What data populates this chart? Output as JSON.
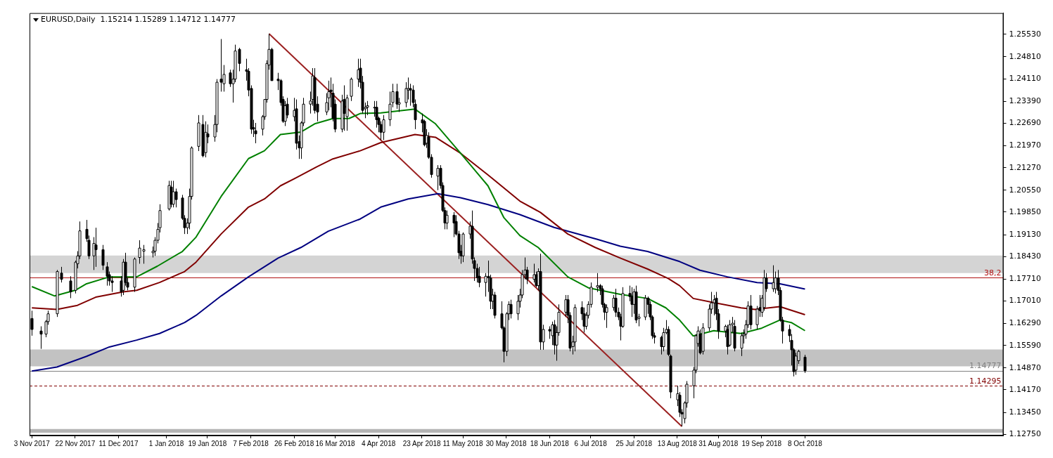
{
  "chart_data": {
    "type": "candlestick",
    "title": "EURUSD,Daily  1.15214 1.15289 1.14712 1.14777",
    "annotations": [
      {
        "text": "38,2",
        "y": 1.1775
      }
    ],
    "xlim": [
      "2017-11-02",
      "2019-01-03"
    ],
    "ylim": [
      1.1271,
      1.2621
    ],
    "xticks": [
      {
        "value": "2017-11-03",
        "label": "3 Nov 2017"
      },
      {
        "value": "2017-11-22",
        "label": "22 Nov 2017"
      },
      {
        "value": "2017-12-11",
        "label": "11 Dec 2017"
      },
      {
        "value": "2018-01-01",
        "label": "1 Jan 2018"
      },
      {
        "value": "2018-01-19",
        "label": "19 Jan 2018"
      },
      {
        "value": "2018-02-07",
        "label": "7 Feb 2018"
      },
      {
        "value": "2018-02-26",
        "label": "26 Feb 2018"
      },
      {
        "value": "2018-03-16",
        "label": "16 Mar 2018"
      },
      {
        "value": "2018-04-04",
        "label": "4 Apr 2018"
      },
      {
        "value": "2018-04-23",
        "label": "23 Apr 2018"
      },
      {
        "value": "2018-05-11",
        "label": "11 May 2018"
      },
      {
        "value": "2018-05-30",
        "label": "30 May 2018"
      },
      {
        "value": "2018-06-18",
        "label": "18 Jun 2018"
      },
      {
        "value": "2018-07-06",
        "label": "6 Jul 2018"
      },
      {
        "value": "2018-07-25",
        "label": "25 Jul 2018"
      },
      {
        "value": "2018-08-13",
        "label": "13 Aug 2018"
      },
      {
        "value": "2018-08-31",
        "label": "31 Aug 2018"
      },
      {
        "value": "2018-09-19",
        "label": "19 Sep 2018"
      },
      {
        "value": "2018-10-08",
        "label": "8 Oct 2018"
      }
    ],
    "yticks": [
      {
        "value": 1.1275,
        "label": "1.12750"
      },
      {
        "value": 1.1345,
        "label": "1.13450"
      },
      {
        "value": 1.1417,
        "label": "1.14170"
      },
      {
        "value": 1.1487,
        "label": "1.14870"
      },
      {
        "value": 1.1559,
        "label": "1.15590"
      },
      {
        "value": 1.1629,
        "label": "1.16290"
      },
      {
        "value": 1.1701,
        "label": "1.17010"
      },
      {
        "value": 1.1771,
        "label": "1.17710"
      },
      {
        "value": 1.1843,
        "label": "1.18430"
      },
      {
        "value": 1.1913,
        "label": "1.19130"
      },
      {
        "value": 1.1985,
        "label": "1.19850"
      },
      {
        "value": 1.2055,
        "label": "1.20550"
      },
      {
        "value": 1.2127,
        "label": "1.21270"
      },
      {
        "value": 1.2197,
        "label": "1.21970"
      },
      {
        "value": 1.2269,
        "label": "1.22690"
      },
      {
        "value": 1.2339,
        "label": "1.23390"
      },
      {
        "value": 1.2411,
        "label": "1.24110"
      },
      {
        "value": 1.2481,
        "label": "1.24810"
      },
      {
        "value": 1.2553,
        "label": "1.25530"
      }
    ],
    "bands": [
      {
        "axis": "y",
        "from": 1.179,
        "to": 1.1846,
        "color": "#d4d4d4"
      },
      {
        "axis": "y",
        "from": 1.1492,
        "to": 1.1546,
        "color": "#c2c2c2"
      },
      {
        "axis": "y",
        "from": 1.128,
        "to": 1.1292,
        "color": "#b4b4b4"
      }
    ],
    "ref_lines": [
      {
        "axis": "y",
        "value": 1.1775,
        "color": "#b01010",
        "line_style": "solid"
      },
      {
        "axis": "y",
        "value": 1.14777,
        "label": "1.14777",
        "color": "#808080",
        "line_style": "solid"
      },
      {
        "axis": "y",
        "value": 1.14295,
        "label": "1.14295",
        "color": "#800000",
        "line_style": "dashed"
      }
    ],
    "series": [
      {
        "type": "line",
        "color": "#008000",
        "x": [
          "2017-11-03",
          "2017-11-13",
          "2017-11-22",
          "2017-11-27",
          "2017-12-07",
          "2017-12-19",
          "2017-12-28",
          "2018-01-08",
          "2018-01-14",
          "2018-01-25",
          "2018-02-06",
          "2018-02-13",
          "2018-02-20",
          "2018-03-01",
          "2018-03-07",
          "2018-03-15",
          "2018-03-22",
          "2018-03-27",
          "2018-04-05",
          "2018-04-20",
          "2018-04-29",
          "2018-05-10",
          "2018-05-22",
          "2018-05-29",
          "2018-06-05",
          "2018-06-13",
          "2018-06-26",
          "2018-07-05",
          "2018-07-19",
          "2018-07-31",
          "2018-08-08",
          "2018-08-14",
          "2018-08-20",
          "2018-08-29",
          "2018-09-10",
          "2018-09-19",
          "2018-09-27",
          "2018-10-02",
          "2018-10-08"
        ],
        "values": [
          1.1747,
          1.1717,
          1.1735,
          1.1756,
          1.1778,
          1.1778,
          1.1812,
          1.1859,
          1.1905,
          1.2035,
          1.2156,
          1.2181,
          1.2233,
          1.2241,
          1.2267,
          1.2284,
          1.2284,
          1.23,
          1.2302,
          1.2314,
          1.2267,
          1.2173,
          1.2069,
          1.1967,
          1.191,
          1.1872,
          1.1778,
          1.1743,
          1.1722,
          1.1709,
          1.1679,
          1.164,
          1.1589,
          1.1606,
          1.1597,
          1.1614,
          1.164,
          1.1632,
          1.1606
        ]
      },
      {
        "type": "line",
        "color": "#800000",
        "x": [
          "2017-11-03",
          "2017-11-14",
          "2017-11-23",
          "2017-12-01",
          "2017-12-13",
          "2017-12-19",
          "2017-12-29",
          "2018-01-09",
          "2018-01-14",
          "2018-01-25",
          "2018-02-06",
          "2018-02-13",
          "2018-02-20",
          "2018-02-27",
          "2018-03-08",
          "2018-03-15",
          "2018-03-27",
          "2018-04-05",
          "2018-04-20",
          "2018-04-29",
          "2018-05-10",
          "2018-05-22",
          "2018-06-05",
          "2018-06-14",
          "2018-06-26",
          "2018-07-08",
          "2018-07-19",
          "2018-07-31",
          "2018-08-09",
          "2018-08-14",
          "2018-08-20",
          "2018-08-29",
          "2018-09-10",
          "2018-09-16",
          "2018-09-27",
          "2018-10-08"
        ],
        "values": [
          1.1679,
          1.1674,
          1.1687,
          1.1713,
          1.173,
          1.1735,
          1.176,
          1.1795,
          1.1825,
          1.1915,
          1.2001,
          1.2027,
          1.2069,
          1.2095,
          1.213,
          1.2155,
          1.2181,
          1.2207,
          1.2233,
          1.2224,
          1.2173,
          1.2104,
          1.202,
          1.1984,
          1.1915,
          1.1872,
          1.1838,
          1.1803,
          1.1773,
          1.175,
          1.1709,
          1.1696,
          1.1679,
          1.1674,
          1.1683,
          1.1657
        ]
      },
      {
        "type": "line",
        "color": "#000080",
        "x": [
          "2017-11-03",
          "2017-11-14",
          "2017-11-27",
          "2017-12-07",
          "2017-12-19",
          "2017-12-29",
          "2018-01-09",
          "2018-01-14",
          "2018-01-25",
          "2018-02-06",
          "2018-02-19",
          "2018-03-01",
          "2018-03-13",
          "2018-03-27",
          "2018-04-05",
          "2018-04-17",
          "2018-04-30",
          "2018-05-10",
          "2018-05-22",
          "2018-06-05",
          "2018-06-20",
          "2018-07-09",
          "2018-07-19",
          "2018-07-31",
          "2018-08-14",
          "2018-08-23",
          "2018-09-04",
          "2018-09-17",
          "2018-09-27",
          "2018-10-08"
        ],
        "values": [
          1.1477,
          1.149,
          1.1524,
          1.1554,
          1.1576,
          1.1597,
          1.1632,
          1.1655,
          1.1717,
          1.1778,
          1.1838,
          1.1872,
          1.1924,
          1.1963,
          1.2001,
          1.2027,
          1.2044,
          1.2031,
          1.2009,
          1.1977,
          1.1936,
          1.1898,
          1.1876,
          1.1859,
          1.1827,
          1.1799,
          1.1778,
          1.176,
          1.1756,
          1.1739
        ]
      },
      {
        "type": "line",
        "color": "#9b2020",
        "x": [
          "2018-02-15",
          "2018-08-15"
        ],
        "values": [
          1.2555,
          1.13
        ]
      }
    ],
    "x": [
      "2017-11-03",
      "2017-11-07",
      "2017-11-09",
      "2017-11-10",
      "2017-11-14",
      "2017-11-16",
      "2017-11-20",
      "2017-11-22",
      "2017-11-23",
      "2017-11-24",
      "2017-11-27",
      "2017-11-28",
      "2017-11-30",
      "2017-12-01",
      "2017-12-04",
      "2017-12-06",
      "2017-12-07",
      "2017-12-08",
      "2017-12-12",
      "2017-12-13",
      "2017-12-14",
      "2017-12-15",
      "2017-12-18",
      "2017-12-20",
      "2017-12-22",
      "2017-12-26",
      "2017-12-27",
      "2017-12-28",
      "2017-12-29",
      "2018-01-02",
      "2018-01-03",
      "2018-01-04",
      "2018-01-05",
      "2018-01-08",
      "2018-01-09",
      "2018-01-10",
      "2018-01-11",
      "2018-01-12",
      "2018-01-15",
      "2018-01-17",
      "2018-01-18",
      "2018-01-19",
      "2018-01-22",
      "2018-01-23",
      "2018-01-25",
      "2018-01-26",
      "2018-01-29",
      "2018-01-30",
      "2018-01-31",
      "2018-02-02",
      "2018-02-05",
      "2018-02-06",
      "2018-02-07",
      "2018-02-08",
      "2018-02-09",
      "2018-02-12",
      "2018-02-13",
      "2018-02-14",
      "2018-02-15",
      "2018-02-16",
      "2018-02-19",
      "2018-02-20",
      "2018-02-21",
      "2018-02-22",
      "2018-02-23",
      "2018-02-26",
      "2018-02-27",
      "2018-02-28",
      "2018-03-01",
      "2018-03-02",
      "2018-03-05",
      "2018-03-06",
      "2018-03-07",
      "2018-03-08",
      "2018-03-12",
      "2018-03-13",
      "2018-03-14",
      "2018-03-15",
      "2018-03-16",
      "2018-03-19",
      "2018-03-20",
      "2018-03-21",
      "2018-03-23",
      "2018-03-26",
      "2018-03-27",
      "2018-03-28",
      "2018-03-29",
      "2018-03-30",
      "2018-04-02",
      "2018-04-03",
      "2018-04-04",
      "2018-04-05",
      "2018-04-06",
      "2018-04-09",
      "2018-04-10",
      "2018-04-12",
      "2018-04-13",
      "2018-04-16",
      "2018-04-17",
      "2018-04-18",
      "2018-04-19",
      "2018-04-20",
      "2018-04-23",
      "2018-04-24",
      "2018-04-25",
      "2018-04-26",
      "2018-04-27",
      "2018-04-30",
      "2018-05-01",
      "2018-05-02",
      "2018-05-03",
      "2018-05-04",
      "2018-05-07",
      "2018-05-08",
      "2018-05-09",
      "2018-05-10",
      "2018-05-11",
      "2018-05-14",
      "2018-05-15",
      "2018-05-16",
      "2018-05-17",
      "2018-05-18",
      "2018-05-21",
      "2018-05-22",
      "2018-05-23",
      "2018-05-24",
      "2018-05-25",
      "2018-05-28",
      "2018-05-29",
      "2018-05-30",
      "2018-05-31",
      "2018-06-01",
      "2018-06-04",
      "2018-06-05",
      "2018-06-06",
      "2018-06-07",
      "2018-06-08",
      "2018-06-11",
      "2018-06-12",
      "2018-06-13",
      "2018-06-14",
      "2018-06-15",
      "2018-06-18",
      "2018-06-19",
      "2018-06-20",
      "2018-06-21",
      "2018-06-22",
      "2018-06-25",
      "2018-06-26",
      "2018-06-27",
      "2018-06-28",
      "2018-06-29",
      "2018-07-02",
      "2018-07-03",
      "2018-07-04",
      "2018-07-05",
      "2018-07-06",
      "2018-07-09",
      "2018-07-10",
      "2018-07-11",
      "2018-07-12",
      "2018-07-13",
      "2018-07-16",
      "2018-07-17",
      "2018-07-18",
      "2018-07-19",
      "2018-07-20",
      "2018-07-23",
      "2018-07-24",
      "2018-07-25",
      "2018-07-26",
      "2018-07-27",
      "2018-07-30",
      "2018-07-31",
      "2018-08-01",
      "2018-08-02",
      "2018-08-03",
      "2018-08-06",
      "2018-08-07",
      "2018-08-08",
      "2018-08-09",
      "2018-08-10",
      "2018-08-13",
      "2018-08-14",
      "2018-08-15",
      "2018-08-16",
      "2018-08-17",
      "2018-08-20",
      "2018-08-21",
      "2018-08-22",
      "2018-08-23",
      "2018-08-24",
      "2018-08-27",
      "2018-08-28",
      "2018-08-29",
      "2018-08-30",
      "2018-08-31",
      "2018-09-03",
      "2018-09-04",
      "2018-09-05",
      "2018-09-06",
      "2018-09-07",
      "2018-09-10",
      "2018-09-11",
      "2018-09-12",
      "2018-09-13",
      "2018-09-14",
      "2018-09-17",
      "2018-09-18",
      "2018-09-19",
      "2018-09-20",
      "2018-09-21",
      "2018-09-24",
      "2018-09-25",
      "2018-09-26",
      "2018-09-27",
      "2018-09-28",
      "2018-10-01",
      "2018-10-02",
      "2018-10-03",
      "2018-10-04",
      "2018-10-05",
      "2018-10-08"
    ],
    "ohlc": [
      [
        1.1645,
        1.167,
        1.159,
        1.161
      ],
      [
        1.1605,
        1.162,
        1.1548,
        1.1595
      ],
      [
        1.1595,
        1.164,
        1.1585,
        1.1635
      ],
      [
        1.1635,
        1.167,
        1.1625,
        1.166
      ],
      [
        1.166,
        1.18,
        1.165,
        1.1795
      ],
      [
        1.179,
        1.181,
        1.176,
        1.177
      ],
      [
        1.1765,
        1.178,
        1.171,
        1.173
      ],
      [
        1.1735,
        1.183,
        1.1725,
        1.1825
      ],
      [
        1.182,
        1.186,
        1.1805,
        1.1845
      ],
      [
        1.1845,
        1.1955,
        1.1835,
        1.1925
      ],
      [
        1.193,
        1.196,
        1.189,
        1.19
      ],
      [
        1.1895,
        1.191,
        1.1835,
        1.1845
      ],
      [
        1.1845,
        1.1905,
        1.18,
        1.1885
      ],
      [
        1.188,
        1.1935,
        1.181,
        1.1865
      ],
      [
        1.1865,
        1.188,
        1.18,
        1.1815
      ],
      [
        1.181,
        1.1825,
        1.175,
        1.178
      ],
      [
        1.1785,
        1.1795,
        1.175,
        1.1765
      ],
      [
        1.1765,
        1.178,
        1.173,
        1.176
      ],
      [
        1.1765,
        1.178,
        1.1715,
        1.173
      ],
      [
        1.1735,
        1.1835,
        1.172,
        1.1825
      ],
      [
        1.1825,
        1.1855,
        1.175,
        1.176
      ],
      [
        1.176,
        1.1775,
        1.1735,
        1.1745
      ],
      [
        1.1745,
        1.184,
        1.173,
        1.1835
      ],
      [
        1.184,
        1.1895,
        1.182,
        1.187
      ],
      [
        1.186,
        1.188,
        1.182,
        1.1865
      ],
      [
        1.1855,
        1.1875,
        1.184,
        1.186
      ],
      [
        1.186,
        1.1905,
        1.1845,
        1.1895
      ],
      [
        1.1895,
        1.195,
        1.1885,
        1.193
      ],
      [
        1.1935,
        1.201,
        1.192,
        1.199
      ],
      [
        1.1995,
        1.2085,
        1.199,
        1.207
      ],
      [
        1.2065,
        1.2085,
        1.2,
        1.201
      ],
      [
        1.201,
        1.2085,
        1.2,
        1.205
      ],
      [
        1.205,
        1.206,
        1.2,
        1.2025
      ],
      [
        1.203,
        1.204,
        1.196,
        1.1965
      ],
      [
        1.1965,
        1.1975,
        1.1915,
        1.1935
      ],
      [
        1.1935,
        1.1965,
        1.1915,
        1.195
      ],
      [
        1.195,
        1.206,
        1.193,
        1.2035
      ],
      [
        1.2035,
        1.2195,
        1.2025,
        1.219
      ],
      [
        1.2195,
        1.2295,
        1.218,
        1.227
      ],
      [
        1.2265,
        1.2295,
        1.216,
        1.2165
      ],
      [
        1.2175,
        1.2275,
        1.216,
        1.224
      ],
      [
        1.2235,
        1.2265,
        1.2205,
        1.2225
      ],
      [
        1.2225,
        1.2295,
        1.221,
        1.2265
      ],
      [
        1.2265,
        1.241,
        1.224,
        1.24
      ],
      [
        1.241,
        1.2538,
        1.237,
        1.24
      ],
      [
        1.2395,
        1.2455,
        1.237,
        1.2425
      ],
      [
        1.243,
        1.244,
        1.2385,
        1.2395
      ],
      [
        1.2395,
        1.244,
        1.2335,
        1.241
      ],
      [
        1.241,
        1.252,
        1.24,
        1.25
      ],
      [
        1.2505,
        1.251,
        1.2435,
        1.246
      ],
      [
        1.244,
        1.2475,
        1.2405,
        1.2435
      ],
      [
        1.2435,
        1.2445,
        1.2355,
        1.2375
      ],
      [
        1.238,
        1.239,
        1.2235,
        1.225
      ],
      [
        1.2255,
        1.228,
        1.2225,
        1.225
      ],
      [
        1.2245,
        1.227,
        1.2205,
        1.2235
      ],
      [
        1.225,
        1.2295,
        1.223,
        1.229
      ],
      [
        1.229,
        1.2345,
        1.228,
        1.2345
      ],
      [
        1.2345,
        1.247,
        1.2335,
        1.246
      ],
      [
        1.2455,
        1.2555,
        1.244,
        1.2505
      ],
      [
        1.2505,
        1.251,
        1.2405,
        1.2405
      ],
      [
        1.241,
        1.243,
        1.2375,
        1.2405
      ],
      [
        1.2405,
        1.241,
        1.2325,
        1.2335
      ],
      [
        1.2345,
        1.2355,
        1.227,
        1.2275
      ],
      [
        1.2275,
        1.234,
        1.226,
        1.2325
      ],
      [
        1.233,
        1.235,
        1.2285,
        1.2295
      ],
      [
        1.229,
        1.235,
        1.2275,
        1.231
      ],
      [
        1.2315,
        1.2345,
        1.2185,
        1.2205
      ],
      [
        1.221,
        1.223,
        1.2155,
        1.219
      ],
      [
        1.219,
        1.2275,
        1.2155,
        1.227
      ],
      [
        1.227,
        1.235,
        1.226,
        1.233
      ],
      [
        1.233,
        1.237,
        1.23,
        1.234
      ],
      [
        1.2345,
        1.2445,
        1.2325,
        1.242
      ],
      [
        1.2415,
        1.2445,
        1.23,
        1.231
      ],
      [
        1.233,
        1.2355,
        1.2275,
        1.2305
      ],
      [
        1.2305,
        1.2365,
        1.2295,
        1.2335
      ],
      [
        1.235,
        1.2405,
        1.231,
        1.237
      ],
      [
        1.2375,
        1.2415,
        1.232,
        1.237
      ],
      [
        1.2365,
        1.2395,
        1.2275,
        1.2285
      ],
      [
        1.233,
        1.2345,
        1.224,
        1.225
      ],
      [
        1.225,
        1.236,
        1.224,
        1.234
      ],
      [
        1.2345,
        1.239,
        1.2245,
        1.23
      ],
      [
        1.229,
        1.236,
        1.2245,
        1.235
      ],
      [
        1.2355,
        1.2415,
        1.234,
        1.241
      ],
      [
        1.241,
        1.2475,
        1.2385,
        1.244
      ],
      [
        1.2445,
        1.2475,
        1.238,
        1.24
      ],
      [
        1.24,
        1.242,
        1.23,
        1.231
      ],
      [
        1.2315,
        1.2335,
        1.2285,
        1.232
      ],
      [
        1.232,
        1.234,
        1.2295,
        1.2325
      ],
      [
        1.232,
        1.234,
        1.229,
        1.232
      ],
      [
        1.232,
        1.234,
        1.2255,
        1.228
      ],
      [
        1.2285,
        1.229,
        1.224,
        1.2265
      ],
      [
        1.2265,
        1.2275,
        1.2215,
        1.224
      ],
      [
        1.224,
        1.2295,
        1.2215,
        1.228
      ],
      [
        1.228,
        1.237,
        1.226,
        1.233
      ],
      [
        1.2335,
        1.2395,
        1.232,
        1.237
      ],
      [
        1.237,
        1.2395,
        1.2315,
        1.233
      ],
      [
        1.233,
        1.235,
        1.2305,
        1.2335
      ],
      [
        1.2335,
        1.24,
        1.232,
        1.238
      ],
      [
        1.2375,
        1.2415,
        1.2345,
        1.238
      ],
      [
        1.238,
        1.2395,
        1.2325,
        1.2375
      ],
      [
        1.2375,
        1.239,
        1.232,
        1.2335
      ],
      [
        1.233,
        1.2345,
        1.225,
        1.228
      ],
      [
        1.228,
        1.23,
        1.224,
        1.227
      ],
      [
        1.2275,
        1.228,
        1.2195,
        1.22
      ],
      [
        1.2205,
        1.225,
        1.219,
        1.223
      ],
      [
        1.2225,
        1.224,
        1.2155,
        1.216
      ],
      [
        1.216,
        1.217,
        1.2095,
        1.2105
      ],
      [
        1.21,
        1.2135,
        1.2055,
        1.2125
      ],
      [
        1.2125,
        1.2135,
        1.206,
        1.207
      ],
      [
        1.207,
        1.208,
        1.1985,
        1.199
      ],
      [
        1.199,
        1.2,
        1.193,
        1.195
      ],
      [
        1.195,
        1.199,
        1.193,
        1.1975
      ],
      [
        1.1975,
        1.1985,
        1.1905,
        1.195
      ],
      [
        1.1955,
        1.1975,
        1.191,
        1.1915
      ],
      [
        1.1915,
        1.1925,
        1.1835,
        1.1855
      ],
      [
        1.186,
        1.188,
        1.182,
        1.1845
      ],
      [
        1.1845,
        1.192,
        1.1825,
        1.1915
      ],
      [
        1.1915,
        1.1955,
        1.19,
        1.194
      ],
      [
        1.194,
        1.199,
        1.182,
        1.1835
      ],
      [
        1.183,
        1.184,
        1.1765,
        1.1805
      ],
      [
        1.1805,
        1.182,
        1.176,
        1.1775
      ],
      [
        1.178,
        1.181,
        1.1745,
        1.176
      ],
      [
        1.176,
        1.179,
        1.1715,
        1.178
      ],
      [
        1.178,
        1.183,
        1.173,
        1.1775
      ],
      [
        1.1775,
        1.1785,
        1.1675,
        1.17
      ],
      [
        1.17,
        1.174,
        1.1675,
        1.172
      ],
      [
        1.172,
        1.173,
        1.1645,
        1.1655
      ],
      [
        1.166,
        1.17,
        1.161,
        1.1615
      ],
      [
        1.1615,
        1.162,
        1.1505,
        1.154
      ],
      [
        1.154,
        1.1665,
        1.1525,
        1.166
      ],
      [
        1.166,
        1.17,
        1.164,
        1.169
      ],
      [
        1.169,
        1.1705,
        1.1645,
        1.166
      ],
      [
        1.166,
        1.172,
        1.164,
        1.17
      ],
      [
        1.17,
        1.174,
        1.168,
        1.172
      ],
      [
        1.172,
        1.18,
        1.171,
        1.1785
      ],
      [
        1.1785,
        1.184,
        1.177,
        1.18
      ],
      [
        1.18,
        1.181,
        1.1755,
        1.177
      ],
      [
        1.177,
        1.182,
        1.176,
        1.1785
      ],
      [
        1.1785,
        1.1795,
        1.1745,
        1.175
      ],
      [
        1.175,
        1.1805,
        1.1735,
        1.1795
      ],
      [
        1.1795,
        1.1852,
        1.1545,
        1.157
      ],
      [
        1.157,
        1.1625,
        1.1545,
        1.161
      ],
      [
        1.161,
        1.162,
        1.158,
        1.1605
      ],
      [
        1.159,
        1.1635,
        1.156,
        1.1625
      ],
      [
        1.1625,
        1.164,
        1.153,
        1.156
      ],
      [
        1.156,
        1.162,
        1.151,
        1.16
      ],
      [
        1.16,
        1.169,
        1.159,
        1.1665
      ],
      [
        1.1665,
        1.172,
        1.165,
        1.1705
      ],
      [
        1.1705,
        1.172,
        1.163,
        1.1655
      ],
      [
        1.1655,
        1.1665,
        1.154,
        1.155
      ],
      [
        1.1555,
        1.159,
        1.153,
        1.157
      ],
      [
        1.157,
        1.169,
        1.154,
        1.168
      ],
      [
        1.168,
        1.17,
        1.164,
        1.166
      ],
      [
        1.166,
        1.168,
        1.16,
        1.162
      ],
      [
        1.162,
        1.1665,
        1.161,
        1.1655
      ],
      [
        1.1655,
        1.17,
        1.1645,
        1.169
      ],
      [
        1.169,
        1.176,
        1.168,
        1.1745
      ],
      [
        1.1745,
        1.179,
        1.173,
        1.175
      ],
      [
        1.175,
        1.1755,
        1.172,
        1.174
      ],
      [
        1.174,
        1.175,
        1.168,
        1.169
      ],
      [
        1.169,
        1.1695,
        1.164,
        1.1665
      ],
      [
        1.1665,
        1.169,
        1.1615,
        1.168
      ],
      [
        1.168,
        1.172,
        1.167,
        1.171
      ],
      [
        1.171,
        1.174,
        1.165,
        1.1665
      ],
      [
        1.1665,
        1.168,
        1.164,
        1.165
      ],
      [
        1.165,
        1.166,
        1.1575,
        1.162
      ],
      [
        1.162,
        1.1745,
        1.1615,
        1.1725
      ],
      [
        1.1725,
        1.175,
        1.17,
        1.1715
      ],
      [
        1.1715,
        1.1745,
        1.165,
        1.169
      ],
      [
        1.169,
        1.174,
        1.166,
        1.173
      ],
      [
        1.173,
        1.175,
        1.163,
        1.164
      ],
      [
        1.1645,
        1.166,
        1.162,
        1.165
      ],
      [
        1.165,
        1.172,
        1.164,
        1.171
      ],
      [
        1.171,
        1.1715,
        1.166,
        1.169
      ],
      [
        1.169,
        1.17,
        1.164,
        1.165
      ],
      [
        1.165,
        1.1655,
        1.158,
        1.159
      ],
      [
        1.159,
        1.16,
        1.1565,
        1.1585
      ],
      [
        1.1585,
        1.159,
        1.153,
        1.1555
      ],
      [
        1.1555,
        1.1615,
        1.154,
        1.16
      ],
      [
        1.16,
        1.164,
        1.1595,
        1.161
      ],
      [
        1.161,
        1.162,
        1.1525,
        1.153
      ],
      [
        1.1525,
        1.153,
        1.139,
        1.141
      ],
      [
        1.1385,
        1.143,
        1.1365,
        1.1405
      ],
      [
        1.14,
        1.141,
        1.133,
        1.1345
      ],
      [
        1.1345,
        1.1355,
        1.13,
        1.134
      ],
      [
        1.1325,
        1.138,
        1.131,
        1.1375
      ],
      [
        1.1375,
        1.1445,
        1.136,
        1.1435
      ],
      [
        1.143,
        1.149,
        1.139,
        1.148
      ],
      [
        1.148,
        1.1595,
        1.147,
        1.159
      ],
      [
        1.1565,
        1.162,
        1.1555,
        1.1605
      ],
      [
        1.1595,
        1.161,
        1.153,
        1.1535
      ],
      [
        1.154,
        1.163,
        1.153,
        1.1615
      ],
      [
        1.1615,
        1.169,
        1.1605,
        1.1675
      ],
      [
        1.1675,
        1.173,
        1.166,
        1.1695
      ],
      [
        1.1695,
        1.172,
        1.1655,
        1.1705
      ],
      [
        1.171,
        1.173,
        1.164,
        1.166
      ],
      [
        1.166,
        1.1675,
        1.158,
        1.1605
      ],
      [
        1.1605,
        1.1625,
        1.1585,
        1.162
      ],
      [
        1.161,
        1.1625,
        1.153,
        1.1555
      ],
      [
        1.156,
        1.164,
        1.1555,
        1.1625
      ],
      [
        1.1625,
        1.165,
        1.16,
        1.163
      ],
      [
        1.162,
        1.164,
        1.154,
        1.155
      ],
      [
        1.155,
        1.16,
        1.1525,
        1.159
      ],
      [
        1.159,
        1.161,
        1.1565,
        1.1595
      ],
      [
        1.1595,
        1.164,
        1.158,
        1.1625
      ],
      [
        1.1625,
        1.17,
        1.1615,
        1.1685
      ],
      [
        1.1685,
        1.172,
        1.161,
        1.1625
      ],
      [
        1.1625,
        1.1685,
        1.161,
        1.1675
      ],
      [
        1.168,
        1.172,
        1.165,
        1.167
      ],
      [
        1.1665,
        1.172,
        1.165,
        1.171
      ],
      [
        1.168,
        1.18,
        1.167,
        1.1775
      ],
      [
        1.1775,
        1.179,
        1.173,
        1.174
      ],
      [
        1.174,
        1.1815,
        1.173,
        1.176
      ],
      [
        1.174,
        1.1795,
        1.1725,
        1.1775
      ],
      [
        1.1775,
        1.18,
        1.172,
        1.1735
      ],
      [
        1.1735,
        1.1745,
        1.1635,
        1.164
      ],
      [
        1.164,
        1.165,
        1.1565,
        1.1605
      ],
      [
        1.161,
        1.1625,
        1.157,
        1.159
      ],
      [
        1.1575,
        1.1595,
        1.1495,
        1.1545
      ],
      [
        1.1545,
        1.155,
        1.146,
        1.1475
      ],
      [
        1.148,
        1.1535,
        1.1465,
        1.1525
      ],
      [
        1.151,
        1.1545,
        1.15,
        1.154
      ],
      [
        1.15214,
        1.15289,
        1.14712,
        1.14777
      ]
    ]
  }
}
